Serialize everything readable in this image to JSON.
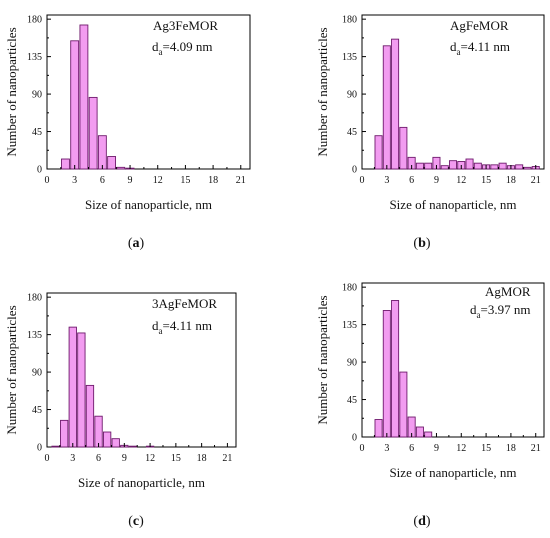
{
  "colors": {
    "bar_fill": "#f29cf0",
    "bar_stroke": "#6e1a6c",
    "axis": "#000000"
  },
  "chart_data": [
    {
      "type": "bar",
      "panel": "a",
      "caption": "a",
      "legend_label": "Ag3FeMOR",
      "stat_symbol": "d",
      "stat_sub": "a",
      "stat_value": "=4.09 nm",
      "xlabel": "Size of nanoparticle, nm",
      "ylabel": "Number of nanoparticles",
      "xlim": [
        0,
        22
      ],
      "ylim": [
        0,
        185
      ],
      "xticks": [
        0,
        3,
        6,
        9,
        12,
        15,
        18,
        21
      ],
      "yticks": [
        0,
        45,
        90,
        135,
        180
      ],
      "x": [
        1,
        2,
        3,
        4,
        5,
        6,
        7,
        8,
        9,
        10,
        11,
        12,
        13,
        14,
        15,
        16,
        17,
        18,
        19,
        20,
        21
      ],
      "values": [
        0,
        12,
        154,
        173,
        86,
        40,
        15,
        2,
        1,
        0,
        0,
        0,
        0,
        0,
        0,
        0,
        0,
        0,
        0,
        0,
        0
      ]
    },
    {
      "type": "bar",
      "panel": "b",
      "caption": "b",
      "legend_label": "AgFeMOR",
      "stat_symbol": "d",
      "stat_sub": "a",
      "stat_value": "=4.11 nm",
      "xlabel": "Size of nanoparticle, nm",
      "ylabel": "Number of nanoparticles",
      "xlim": [
        0,
        22
      ],
      "ylim": [
        0,
        185
      ],
      "xticks": [
        0,
        3,
        6,
        9,
        12,
        15,
        18,
        21
      ],
      "yticks": [
        0,
        45,
        90,
        135,
        180
      ],
      "x": [
        1,
        2,
        3,
        4,
        5,
        6,
        7,
        8,
        9,
        10,
        11,
        12,
        13,
        14,
        15,
        16,
        17,
        18,
        19,
        20,
        21
      ],
      "values": [
        0,
        40,
        148,
        156,
        50,
        14,
        7,
        7,
        14,
        4,
        10,
        9,
        12,
        7,
        5,
        5,
        7,
        4,
        5,
        2,
        3
      ]
    },
    {
      "type": "bar",
      "panel": "c",
      "caption": "c",
      "legend_label": "3AgFeMOR",
      "stat_symbol": "d",
      "stat_sub": "a",
      "stat_value": "=4.11 nm",
      "xlabel": "Size of nanoparticle, nm",
      "ylabel": "Number of nanoparticles",
      "xlim": [
        0,
        22
      ],
      "ylim": [
        0,
        185
      ],
      "xticks": [
        0,
        3,
        6,
        9,
        12,
        15,
        18,
        21
      ],
      "yticks": [
        0,
        45,
        90,
        135,
        180
      ],
      "x": [
        1,
        2,
        3,
        4,
        5,
        6,
        7,
        8,
        9,
        10,
        11,
        12,
        13,
        14,
        15,
        16,
        17,
        18,
        19,
        20,
        21
      ],
      "values": [
        1,
        32,
        144,
        137,
        74,
        37,
        18,
        10,
        2,
        1,
        0,
        1,
        0,
        0,
        0,
        0,
        0,
        0,
        0,
        0,
        0
      ]
    },
    {
      "type": "bar",
      "panel": "d",
      "caption": "d",
      "legend_label": "AgMOR",
      "stat_symbol": "d",
      "stat_sub": "a",
      "stat_value": "=3.97 nm",
      "xlabel": "Size of nanoparticle, nm",
      "ylabel": "Number of nanoparticles",
      "xlim": [
        0,
        22
      ],
      "ylim": [
        0,
        185
      ],
      "xticks": [
        0,
        3,
        6,
        9,
        12,
        15,
        18,
        21
      ],
      "yticks": [
        0,
        45,
        90,
        135,
        180
      ],
      "x": [
        1,
        2,
        3,
        4,
        5,
        6,
        7,
        8,
        9,
        10,
        11,
        12,
        13,
        14,
        15,
        16,
        17,
        18,
        19,
        20,
        21
      ],
      "values": [
        0,
        21,
        152,
        164,
        78,
        24,
        12,
        6,
        0,
        0,
        0,
        0,
        0,
        0,
        0,
        0,
        0,
        0,
        0,
        0,
        0
      ]
    }
  ]
}
